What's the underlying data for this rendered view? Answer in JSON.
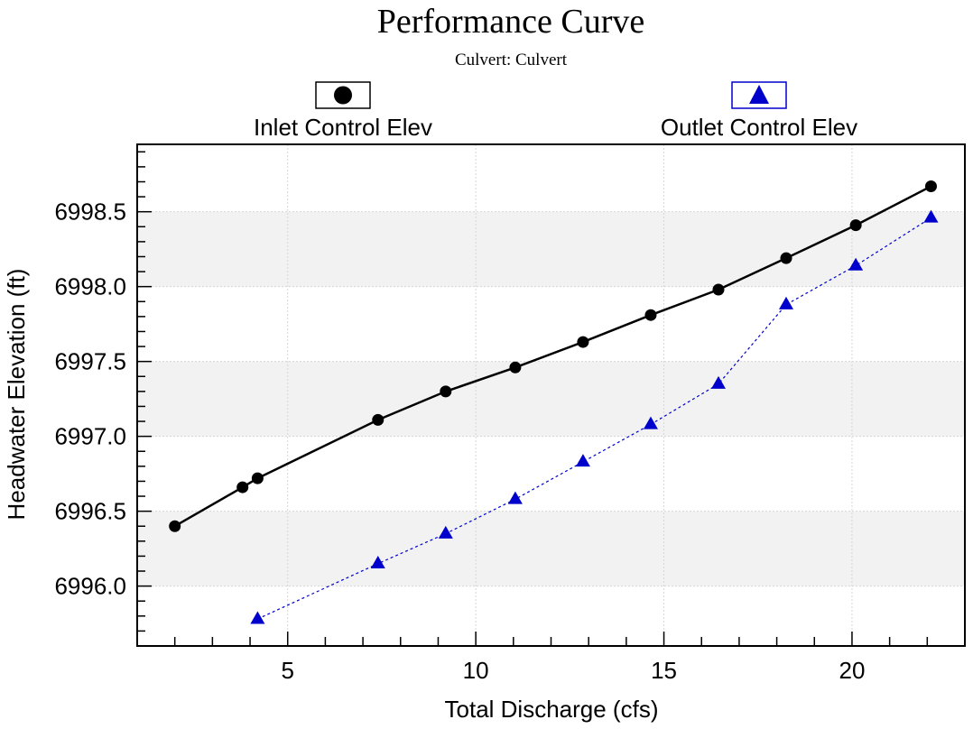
{
  "chart_data": {
    "type": "line",
    "title": "Performance Curve",
    "subtitle": "Culvert: Culvert",
    "xlabel": "Total Discharge (cfs)",
    "ylabel": "Headwater Elevation (ft)",
    "xlim": [
      1.0,
      23.0
    ],
    "ylim": [
      6995.6,
      6998.95
    ],
    "x_ticks": [
      5,
      10,
      15,
      20
    ],
    "x_tick_labels": [
      "5",
      "10",
      "15",
      "20"
    ],
    "y_ticks": [
      6996.0,
      6996.5,
      6997.0,
      6997.5,
      6998.0,
      6998.5
    ],
    "y_tick_labels": [
      "6996.0",
      "6996.5",
      "6997.0",
      "6997.5",
      "6998.0",
      "6998.5"
    ],
    "grid": true,
    "legend_position": "top",
    "series": [
      {
        "name": "Inlet Control Elev",
        "color": "#000000",
        "marker": "circle",
        "line_style": "solid",
        "points": [
          [
            2.0,
            6996.4
          ],
          [
            3.8,
            6996.66
          ],
          [
            4.2,
            6996.72
          ],
          [
            7.4,
            6997.11
          ],
          [
            9.2,
            6997.3
          ],
          [
            11.05,
            6997.46
          ],
          [
            12.85,
            6997.63
          ],
          [
            14.65,
            6997.81
          ],
          [
            16.45,
            6997.98
          ],
          [
            18.25,
            6998.19
          ],
          [
            20.1,
            6998.41
          ],
          [
            22.1,
            6998.67
          ]
        ]
      },
      {
        "name": "Outlet Control Elev",
        "color": "#0000cc",
        "marker": "triangle",
        "line_style": "dashed",
        "points": [
          [
            4.2,
            6995.78
          ],
          [
            7.4,
            6996.15
          ],
          [
            9.2,
            6996.35
          ],
          [
            11.05,
            6996.58
          ],
          [
            12.85,
            6996.83
          ],
          [
            14.65,
            6997.08
          ],
          [
            16.45,
            6997.35
          ],
          [
            18.25,
            6997.88
          ],
          [
            20.1,
            6998.14
          ],
          [
            22.1,
            6998.46
          ]
        ]
      }
    ]
  }
}
